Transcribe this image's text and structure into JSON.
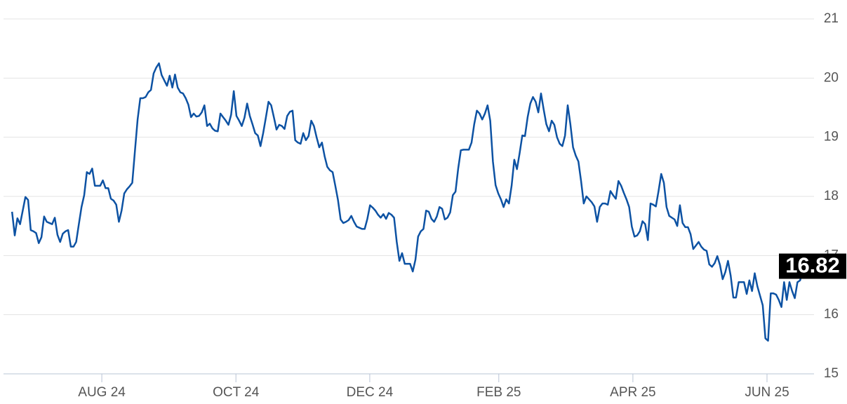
{
  "chart_data": {
    "type": "line",
    "color": "#0d52a3",
    "grid": true,
    "xlim": [
      -3.2,
      300.2
    ],
    "xticks": [
      {
        "value": 33.6,
        "label": "AUG 24"
      },
      {
        "value": 83.8,
        "label": "OCT 24"
      },
      {
        "value": 133.9,
        "label": "DEC 24"
      },
      {
        "value": 182.2,
        "label": "FEB 25"
      },
      {
        "value": 232.4,
        "label": "APR 25"
      },
      {
        "value": 282.6,
        "label": "JUN 25"
      }
    ],
    "ylim": [
      15,
      21
    ],
    "yticks": [
      15,
      16,
      17,
      18,
      19,
      20,
      21
    ],
    "values": [
      17.74,
      17.34,
      17.63,
      17.53,
      17.76,
      17.99,
      17.94,
      17.43,
      17.41,
      17.38,
      17.21,
      17.31,
      17.66,
      17.57,
      17.55,
      17.53,
      17.64,
      17.35,
      17.23,
      17.37,
      17.41,
      17.43,
      17.15,
      17.15,
      17.23,
      17.53,
      17.82,
      18.02,
      18.41,
      18.38,
      18.47,
      18.18,
      18.18,
      18.18,
      18.27,
      18.14,
      18.14,
      17.96,
      17.93,
      17.86,
      17.57,
      17.76,
      18.05,
      18.12,
      18.17,
      18.23,
      18.77,
      19.3,
      19.66,
      19.66,
      19.68,
      19.76,
      19.8,
      20.08,
      20.18,
      20.25,
      20.05,
      19.96,
      19.87,
      20.04,
      19.84,
      20.06,
      19.84,
      19.76,
      19.74,
      19.66,
      19.55,
      19.34,
      19.4,
      19.35,
      19.36,
      19.42,
      19.54,
      19.19,
      19.23,
      19.15,
      19.11,
      19.1,
      19.4,
      19.34,
      19.28,
      19.21,
      19.38,
      19.78,
      19.36,
      19.28,
      19.19,
      19.33,
      19.57,
      19.36,
      19.22,
      19.07,
      19.03,
      18.85,
      19.07,
      19.33,
      19.6,
      19.54,
      19.34,
      19.13,
      19.21,
      19.19,
      19.14,
      19.36,
      19.43,
      19.45,
      18.95,
      18.91,
      18.89,
      19.07,
      18.95,
      19.02,
      19.28,
      19.19,
      19.0,
      18.83,
      18.91,
      18.68,
      18.5,
      18.44,
      18.41,
      18.18,
      17.94,
      17.61,
      17.55,
      17.57,
      17.6,
      17.67,
      17.57,
      17.49,
      17.47,
      17.45,
      17.45,
      17.62,
      17.85,
      17.81,
      17.76,
      17.69,
      17.64,
      17.7,
      17.62,
      17.72,
      17.69,
      17.64,
      17.23,
      16.91,
      17.04,
      16.86,
      16.86,
      16.86,
      16.73,
      16.93,
      17.32,
      17.41,
      17.45,
      17.76,
      17.74,
      17.62,
      17.57,
      17.66,
      17.82,
      17.79,
      17.61,
      17.64,
      17.73,
      18.02,
      18.08,
      18.47,
      18.78,
      18.79,
      18.79,
      18.79,
      18.91,
      19.22,
      19.45,
      19.4,
      19.3,
      19.4,
      19.54,
      19.28,
      18.59,
      18.19,
      18.05,
      17.95,
      17.82,
      17.95,
      17.88,
      18.18,
      18.62,
      18.46,
      18.73,
      19.03,
      19.02,
      19.34,
      19.57,
      19.68,
      19.6,
      19.42,
      19.74,
      19.47,
      19.22,
      19.1,
      19.28,
      19.21,
      19.0,
      18.89,
      18.85,
      19.03,
      19.54,
      19.22,
      18.83,
      18.69,
      18.59,
      18.26,
      17.88,
      18.0,
      17.95,
      17.9,
      17.83,
      17.57,
      17.82,
      17.88,
      17.88,
      17.86,
      18.09,
      18.02,
      17.96,
      18.26,
      18.18,
      18.06,
      17.95,
      17.82,
      17.49,
      17.32,
      17.34,
      17.41,
      17.58,
      17.53,
      17.26,
      17.88,
      17.86,
      17.83,
      18.09,
      18.38,
      18.23,
      17.82,
      17.67,
      17.64,
      17.61,
      17.5,
      17.85,
      17.55,
      17.48,
      17.48,
      17.36,
      17.11,
      17.17,
      17.23,
      17.15,
      17.1,
      17.08,
      16.85,
      16.81,
      16.87,
      16.99,
      16.84,
      16.6,
      16.72,
      16.91,
      16.66,
      16.29,
      16.29,
      16.55,
      16.55,
      16.55,
      16.35,
      16.58,
      16.4,
      16.7,
      16.48,
      16.32,
      16.16,
      15.6,
      15.56,
      16.36,
      16.36,
      16.34,
      16.25,
      16.13,
      16.55,
      16.25,
      16.55,
      16.4,
      16.28,
      16.55,
      16.58,
      16.76,
      16.82
    ]
  }
}
